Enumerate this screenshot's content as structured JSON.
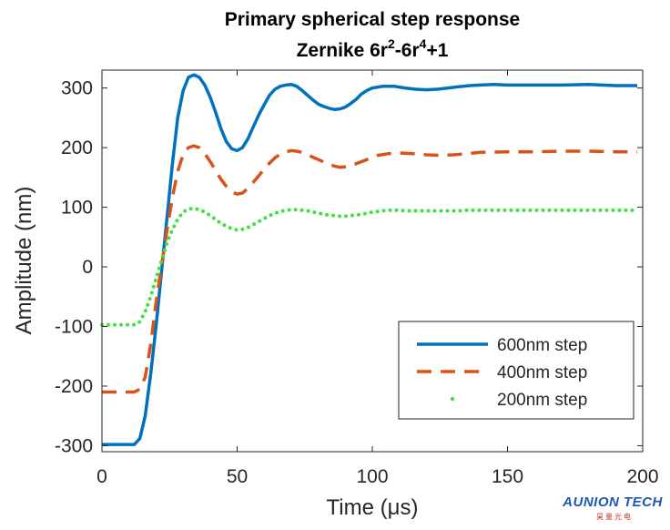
{
  "chart_data": {
    "type": "line",
    "title_line1": "Primary spherical step response",
    "title_line2": {
      "text_a": "Zernike 6r",
      "sup_a": "2",
      "text_b": "-6r",
      "sup_b": "4",
      "text_c": "+1"
    },
    "xlabel": "Time (μs)",
    "ylabel": "Amplitude (nm)",
    "xlim": [
      0,
      200
    ],
    "ylim": [
      -310,
      330
    ],
    "xticks": [
      0,
      50,
      100,
      150,
      200
    ],
    "yticks": [
      -300,
      -200,
      -100,
      0,
      100,
      200,
      300
    ],
    "xtick_labels": [
      "0",
      "50",
      "100",
      "150",
      "200"
    ],
    "ytick_labels": [
      "-300",
      "-200",
      "-100",
      "0",
      "100",
      "200",
      "300"
    ],
    "grid": false,
    "legend_position": "bottom-right",
    "series": [
      {
        "name": "600nm step",
        "color": "#0072bd",
        "style": "solid",
        "x": [
          0,
          5,
          10,
          12,
          14,
          16,
          18,
          20,
          22,
          24,
          26,
          28,
          30,
          32,
          34,
          36,
          38,
          40,
          42,
          44,
          46,
          48,
          50,
          52,
          54,
          56,
          58,
          60,
          62,
          64,
          66,
          68,
          70,
          72,
          74,
          76,
          78,
          80,
          82,
          84,
          86,
          88,
          90,
          92,
          94,
          96,
          98,
          100,
          104,
          108,
          112,
          116,
          120,
          124,
          128,
          132,
          136,
          140,
          145,
          150,
          155,
          160,
          170,
          180,
          190,
          198
        ],
        "y": [
          -298,
          -298,
          -298,
          -298,
          -288,
          -250,
          -180,
          -100,
          -10,
          80,
          170,
          250,
          295,
          318,
          322,
          318,
          305,
          285,
          260,
          232,
          210,
          198,
          195,
          200,
          215,
          235,
          255,
          272,
          288,
          298,
          303,
          305,
          306,
          303,
          296,
          288,
          280,
          273,
          269,
          266,
          264,
          265,
          268,
          274,
          281,
          290,
          296,
          300,
          303,
          303,
          300,
          298,
          297,
          298,
          300,
          302,
          304,
          305,
          306,
          305,
          305,
          305,
          305,
          306,
          304,
          304
        ]
      },
      {
        "name": "400nm step",
        "color": "#d95319",
        "style": "dashed",
        "x": [
          0,
          5,
          10,
          12,
          14,
          16,
          18,
          20,
          22,
          24,
          26,
          28,
          30,
          32,
          34,
          36,
          38,
          40,
          42,
          44,
          46,
          48,
          50,
          52,
          54,
          56,
          58,
          60,
          62,
          64,
          66,
          68,
          70,
          72,
          74,
          76,
          78,
          80,
          82,
          84,
          86,
          88,
          90,
          94,
          98,
          102,
          106,
          110,
          115,
          120,
          125,
          130,
          135,
          140,
          150,
          160,
          170,
          180,
          190,
          198
        ],
        "y": [
          -210,
          -210,
          -210,
          -210,
          -205,
          -185,
          -130,
          -60,
          0,
          60,
          115,
          160,
          188,
          200,
          203,
          200,
          190,
          177,
          162,
          147,
          135,
          126,
          122,
          124,
          132,
          142,
          153,
          164,
          174,
          183,
          189,
          193,
          195,
          194,
          192,
          188,
          184,
          180,
          176,
          172,
          169,
          167,
          168,
          173,
          180,
          187,
          190,
          191,
          190,
          188,
          187,
          188,
          190,
          192,
          193,
          193,
          194,
          194,
          193,
          193
        ]
      },
      {
        "name": "200nm step",
        "color": "#3ee13e",
        "style": "dotted",
        "x": [
          0,
          4,
          8,
          12,
          14,
          16,
          18,
          20,
          22,
          24,
          26,
          28,
          30,
          32,
          34,
          36,
          38,
          40,
          42,
          44,
          46,
          48,
          50,
          52,
          54,
          56,
          58,
          60,
          62,
          64,
          66,
          68,
          70,
          72,
          74,
          76,
          78,
          80,
          82,
          84,
          86,
          88,
          90,
          92,
          94,
          96,
          98,
          100,
          102,
          104,
          106,
          108,
          110,
          112,
          114,
          116,
          118,
          120,
          122,
          124,
          126,
          128,
          130,
          132,
          134,
          136,
          138,
          140,
          142,
          144,
          146,
          148,
          150,
          152,
          154,
          156,
          158,
          160,
          162,
          164,
          166,
          168,
          170,
          172,
          174,
          176,
          178,
          180,
          182,
          184,
          186,
          188,
          190,
          192,
          194,
          196,
          198
        ],
        "y": [
          -97,
          -97,
          -97,
          -97,
          -92,
          -75,
          -50,
          -20,
          10,
          40,
          62,
          80,
          92,
          97,
          98,
          96,
          92,
          86,
          80,
          73,
          68,
          64,
          62,
          63,
          66,
          71,
          76,
          81,
          86,
          90,
          93,
          95,
          96,
          96,
          95,
          94,
          92,
          90,
          88,
          87,
          86,
          85,
          85,
          86,
          87,
          88,
          90,
          92,
          93,
          94,
          95,
          95,
          95,
          94,
          94,
          94,
          94,
          94,
          94,
          94,
          94,
          94,
          94,
          94,
          95,
          95,
          95,
          95,
          95,
          95,
          95,
          95,
          95,
          95,
          95,
          95,
          95,
          95,
          95,
          95,
          95,
          95,
          95,
          95,
          95,
          95,
          95,
          95,
          95,
          95,
          95,
          95,
          95,
          95,
          95,
          95,
          95
        ]
      }
    ]
  },
  "logo": {
    "main": "AUNION TECH",
    "sub": "昊量光电"
  }
}
